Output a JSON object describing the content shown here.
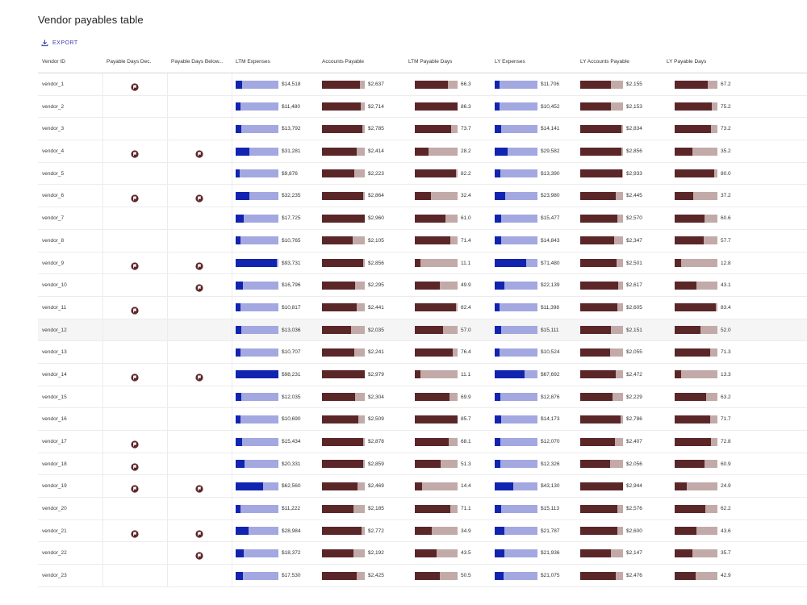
{
  "title": "Vendor payables table",
  "export_label": "EXPORT",
  "colors": {
    "blue_fill": "#1124b0",
    "blue_track": "#a3a8e0",
    "brown_fill": "#5a2628",
    "brown_track": "#c2aaa8"
  },
  "columns": [
    "Vendor ID",
    "Payable Days Dec.",
    "Payable Days Below...",
    "LTM Expenses",
    "Accounts Payable",
    "LTM Payable Days",
    "LY Expenses",
    "LY Accounts Payable",
    "LY Payable Days"
  ],
  "rows": [
    {
      "id": "vendor_1",
      "dec": true,
      "below": false,
      "ltm_exp": "$14,518",
      "ltm_exp_frac": 0.148,
      "ap": "$2,637",
      "ap_frac": 0.885,
      "ltm_days": "66.3",
      "ltm_days_frac": 0.77,
      "ly_exp": "$11,706",
      "ly_exp_frac": 0.12,
      "ly_ap": "$2,155",
      "ly_ap_frac": 0.725,
      "ly_days": "67.2",
      "ly_days_frac": 0.78
    },
    {
      "id": "vendor_2",
      "dec": false,
      "below": false,
      "ltm_exp": "$11,480",
      "ltm_exp_frac": 0.117,
      "ap": "$2,714",
      "ap_frac": 0.91,
      "ltm_days": "86.3",
      "ltm_days_frac": 1.0,
      "ly_exp": "$10,452",
      "ly_exp_frac": 0.107,
      "ly_ap": "$2,153",
      "ly_ap_frac": 0.724,
      "ly_days": "75.2",
      "ly_days_frac": 0.87
    },
    {
      "id": "vendor_3",
      "dec": false,
      "below": false,
      "ltm_exp": "$13,792",
      "ltm_exp_frac": 0.14,
      "ap": "$2,785",
      "ap_frac": 0.935,
      "ltm_days": "73.7",
      "ltm_days_frac": 0.855,
      "ly_exp": "$14,141",
      "ly_exp_frac": 0.145,
      "ly_ap": "$2,834",
      "ly_ap_frac": 0.953,
      "ly_days": "73.2",
      "ly_days_frac": 0.85
    },
    {
      "id": "vendor_4",
      "dec": true,
      "below": true,
      "ltm_exp": "$31,281",
      "ltm_exp_frac": 0.318,
      "ap": "$2,414",
      "ap_frac": 0.81,
      "ltm_days": "28.2",
      "ltm_days_frac": 0.327,
      "ly_exp": "$29,582",
      "ly_exp_frac": 0.303,
      "ly_ap": "$2,856",
      "ly_ap_frac": 0.96,
      "ly_days": "35.2",
      "ly_days_frac": 0.408
    },
    {
      "id": "vendor_5",
      "dec": false,
      "below": false,
      "ltm_exp": "$9,876",
      "ltm_exp_frac": 0.1,
      "ap": "$2,223",
      "ap_frac": 0.746,
      "ltm_days": "82.2",
      "ltm_days_frac": 0.953,
      "ly_exp": "$13,390",
      "ly_exp_frac": 0.137,
      "ly_ap": "$2,933",
      "ly_ap_frac": 0.986,
      "ly_days": "80.0",
      "ly_days_frac": 0.927
    },
    {
      "id": "vendor_6",
      "dec": true,
      "below": true,
      "ltm_exp": "$32,235",
      "ltm_exp_frac": 0.328,
      "ap": "$2,864",
      "ap_frac": 0.961,
      "ltm_days": "32.4",
      "ltm_days_frac": 0.376,
      "ly_exp": "$23,980",
      "ly_exp_frac": 0.245,
      "ly_ap": "$2,445",
      "ly_ap_frac": 0.822,
      "ly_days": "37.2",
      "ly_days_frac": 0.431
    },
    {
      "id": "vendor_7",
      "dec": false,
      "below": false,
      "ltm_exp": "$17,725",
      "ltm_exp_frac": 0.18,
      "ap": "$2,960",
      "ap_frac": 0.994,
      "ltm_days": "61.0",
      "ltm_days_frac": 0.707,
      "ly_exp": "$15,477",
      "ly_exp_frac": 0.158,
      "ly_ap": "$2,570",
      "ly_ap_frac": 0.864,
      "ly_days": "60.6",
      "ly_days_frac": 0.702
    },
    {
      "id": "vendor_8",
      "dec": false,
      "below": false,
      "ltm_exp": "$10,765",
      "ltm_exp_frac": 0.11,
      "ap": "$2,105",
      "ap_frac": 0.707,
      "ltm_days": "71.4",
      "ltm_days_frac": 0.827,
      "ly_exp": "$14,843",
      "ly_exp_frac": 0.152,
      "ly_ap": "$2,347",
      "ly_ap_frac": 0.789,
      "ly_days": "57.7",
      "ly_days_frac": 0.669
    },
    {
      "id": "vendor_9",
      "dec": true,
      "below": true,
      "ltm_exp": "$93,731",
      "ltm_exp_frac": 0.954,
      "ap": "$2,856",
      "ap_frac": 0.959,
      "ltm_days": "11.1",
      "ltm_days_frac": 0.129,
      "ly_exp": "$71,480",
      "ly_exp_frac": 0.731,
      "ly_ap": "$2,501",
      "ly_ap_frac": 0.841,
      "ly_days": "12.8",
      "ly_days_frac": 0.148
    },
    {
      "id": "vendor_10",
      "dec": false,
      "below": true,
      "ltm_exp": "$16,796",
      "ltm_exp_frac": 0.171,
      "ap": "$2,295",
      "ap_frac": 0.77,
      "ltm_days": "49.9",
      "ltm_days_frac": 0.578,
      "ly_exp": "$22,139",
      "ly_exp_frac": 0.226,
      "ly_ap": "$2,617",
      "ly_ap_frac": 0.88,
      "ly_days": "43.1",
      "ly_days_frac": 0.5
    },
    {
      "id": "vendor_11",
      "dec": true,
      "below": false,
      "ltm_exp": "$10,817",
      "ltm_exp_frac": 0.11,
      "ap": "$2,441",
      "ap_frac": 0.819,
      "ltm_days": "82.4",
      "ltm_days_frac": 0.955,
      "ly_exp": "$11,398",
      "ly_exp_frac": 0.117,
      "ly_ap": "$2,605",
      "ly_ap_frac": 0.876,
      "ly_days": "83.4",
      "ly_days_frac": 0.967
    },
    {
      "id": "vendor_12",
      "dec": false,
      "below": false,
      "ltm_exp": "$13,036",
      "ltm_exp_frac": 0.133,
      "ap": "$2,035",
      "ap_frac": 0.683,
      "ltm_days": "57.0",
      "ltm_days_frac": 0.661,
      "ly_exp": "$15,111",
      "ly_exp_frac": 0.155,
      "ly_ap": "$2,151",
      "ly_ap_frac": 0.723,
      "ly_days": "52.0",
      "ly_days_frac": 0.603
    },
    {
      "id": "vendor_13",
      "dec": false,
      "below": false,
      "ltm_exp": "$10,707",
      "ltm_exp_frac": 0.109,
      "ap": "$2,241",
      "ap_frac": 0.752,
      "ltm_days": "76.4",
      "ltm_days_frac": 0.886,
      "ly_exp": "$10,524",
      "ly_exp_frac": 0.108,
      "ly_ap": "$2,055",
      "ly_ap_frac": 0.691,
      "ly_days": "71.3",
      "ly_days_frac": 0.826
    },
    {
      "id": "vendor_14",
      "dec": true,
      "below": true,
      "ltm_exp": "$98,231",
      "ltm_exp_frac": 1.0,
      "ap": "$2,979",
      "ap_frac": 1.0,
      "ltm_days": "11.1",
      "ltm_days_frac": 0.129,
      "ly_exp": "$67,692",
      "ly_exp_frac": 0.692,
      "ly_ap": "$2,472",
      "ly_ap_frac": 0.831,
      "ly_days": "13.3",
      "ly_days_frac": 0.154
    },
    {
      "id": "vendor_15",
      "dec": false,
      "below": false,
      "ltm_exp": "$12,035",
      "ltm_exp_frac": 0.123,
      "ap": "$2,304",
      "ap_frac": 0.773,
      "ltm_days": "69.9",
      "ltm_days_frac": 0.81,
      "ly_exp": "$12,876",
      "ly_exp_frac": 0.132,
      "ly_ap": "$2,229",
      "ly_ap_frac": 0.749,
      "ly_days": "63.2",
      "ly_days_frac": 0.733
    },
    {
      "id": "vendor_16",
      "dec": false,
      "below": false,
      "ltm_exp": "$10,690",
      "ltm_exp_frac": 0.109,
      "ap": "$2,509",
      "ap_frac": 0.842,
      "ltm_days": "85.7",
      "ltm_days_frac": 0.993,
      "ly_exp": "$14,173",
      "ly_exp_frac": 0.145,
      "ly_ap": "$2,786",
      "ly_ap_frac": 0.937,
      "ly_days": "71.7",
      "ly_days_frac": 0.831
    },
    {
      "id": "vendor_17",
      "dec": true,
      "below": false,
      "ltm_exp": "$15,434",
      "ltm_exp_frac": 0.157,
      "ap": "$2,878",
      "ap_frac": 0.966,
      "ltm_days": "68.1",
      "ltm_days_frac": 0.789,
      "ly_exp": "$12,070",
      "ly_exp_frac": 0.123,
      "ly_ap": "$2,407",
      "ly_ap_frac": 0.809,
      "ly_days": "72.8",
      "ly_days_frac": 0.844
    },
    {
      "id": "vendor_18",
      "dec": true,
      "below": false,
      "ltm_exp": "$20,331",
      "ltm_exp_frac": 0.207,
      "ap": "$2,859",
      "ap_frac": 0.96,
      "ltm_days": "51.3",
      "ltm_days_frac": 0.594,
      "ly_exp": "$12,326",
      "ly_exp_frac": 0.126,
      "ly_ap": "$2,056",
      "ly_ap_frac": 0.691,
      "ly_days": "60.9",
      "ly_days_frac": 0.706
    },
    {
      "id": "vendor_19",
      "dec": true,
      "below": true,
      "ltm_exp": "$62,560",
      "ltm_exp_frac": 0.637,
      "ap": "$2,469",
      "ap_frac": 0.829,
      "ltm_days": "14.4",
      "ltm_days_frac": 0.167,
      "ly_exp": "$43,130",
      "ly_exp_frac": 0.441,
      "ly_ap": "$2,944",
      "ly_ap_frac": 0.99,
      "ly_days": "24.9",
      "ly_days_frac": 0.289
    },
    {
      "id": "vendor_20",
      "dec": false,
      "below": false,
      "ltm_exp": "$11,222",
      "ltm_exp_frac": 0.114,
      "ap": "$2,185",
      "ap_frac": 0.733,
      "ltm_days": "71.1",
      "ltm_days_frac": 0.824,
      "ly_exp": "$15,113",
      "ly_exp_frac": 0.155,
      "ly_ap": "$2,576",
      "ly_ap_frac": 0.866,
      "ly_days": "62.2",
      "ly_days_frac": 0.721
    },
    {
      "id": "vendor_21",
      "dec": true,
      "below": true,
      "ltm_exp": "$28,984",
      "ltm_exp_frac": 0.295,
      "ap": "$2,772",
      "ap_frac": 0.93,
      "ltm_days": "34.9",
      "ltm_days_frac": 0.404,
      "ly_exp": "$21,787",
      "ly_exp_frac": 0.223,
      "ly_ap": "$2,600",
      "ly_ap_frac": 0.874,
      "ly_days": "43.6",
      "ly_days_frac": 0.505
    },
    {
      "id": "vendor_22",
      "dec": false,
      "below": true,
      "ltm_exp": "$18,372",
      "ltm_exp_frac": 0.187,
      "ap": "$2,192",
      "ap_frac": 0.736,
      "ltm_days": "43.5",
      "ltm_days_frac": 0.504,
      "ly_exp": "$21,936",
      "ly_exp_frac": 0.224,
      "ly_ap": "$2,147",
      "ly_ap_frac": 0.722,
      "ly_days": "35.7",
      "ly_days_frac": 0.414
    },
    {
      "id": "vendor_23",
      "dec": false,
      "below": false,
      "ltm_exp": "$17,530",
      "ltm_exp_frac": 0.178,
      "ap": "$2,425",
      "ap_frac": 0.814,
      "ltm_days": "50.5",
      "ltm_days_frac": 0.585,
      "ly_exp": "$21,075",
      "ly_exp_frac": 0.215,
      "ly_ap": "$2,476",
      "ly_ap_frac": 0.832,
      "ly_days": "42.9",
      "ly_days_frac": 0.497
    }
  ]
}
